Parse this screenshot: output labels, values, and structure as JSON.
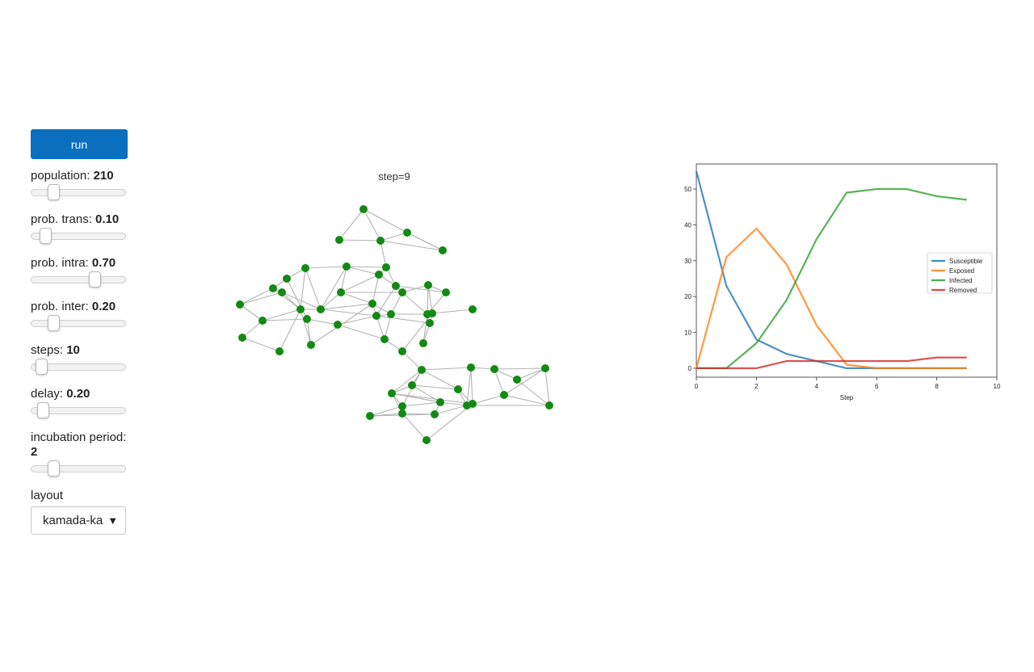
{
  "controls": {
    "run_label": "run",
    "sliders": [
      {
        "label": "population:",
        "value": "210",
        "fraction": 0.2
      },
      {
        "label": "prob. trans:",
        "value": "0.10",
        "fraction": 0.1
      },
      {
        "label": "prob. intra:",
        "value": "0.70",
        "fraction": 0.7
      },
      {
        "label": "prob. inter:",
        "value": "0.20",
        "fraction": 0.2
      },
      {
        "label": "steps:",
        "value": "10",
        "fraction": 0.05
      },
      {
        "label": "delay:",
        "value": "0.20",
        "fraction": 0.07
      },
      {
        "label": "incubation period:",
        "value": "2",
        "fraction": 0.2
      }
    ],
    "layout_label": "layout",
    "layout_value": "kamada-ka"
  },
  "network": {
    "title": "step=9",
    "node_color": "#128a12",
    "edge_color": "#b3b3b3"
  },
  "chart_data": {
    "type": "line",
    "title": "",
    "xlabel": "Step",
    "ylabel": "",
    "xlim": [
      0,
      10
    ],
    "ylim": [
      -2.5,
      57
    ],
    "xticks": [
      0,
      2,
      4,
      6,
      8,
      10
    ],
    "yticks": [
      0,
      10,
      20,
      30,
      40,
      50
    ],
    "legend_position": "right",
    "x": [
      0,
      1,
      2,
      3,
      4,
      5,
      6,
      7,
      8,
      9
    ],
    "series": [
      {
        "name": "Susceptible",
        "color": "#1f77b4",
        "values": [
          55,
          23,
          8,
          4,
          2,
          0,
          0,
          0,
          0,
          0
        ]
      },
      {
        "name": "Exposed",
        "color": "#ff7f0e",
        "values": [
          0,
          31,
          39,
          29,
          12,
          1,
          0,
          0,
          0,
          0
        ]
      },
      {
        "name": "Infected",
        "color": "#2ca02c",
        "values": [
          0,
          0,
          7,
          19,
          36,
          49,
          50,
          50,
          48,
          47
        ]
      },
      {
        "name": "Removed",
        "color": "#d62728",
        "values": [
          0,
          0,
          0,
          2,
          2,
          2,
          2,
          2,
          3,
          3
        ]
      }
    ]
  }
}
